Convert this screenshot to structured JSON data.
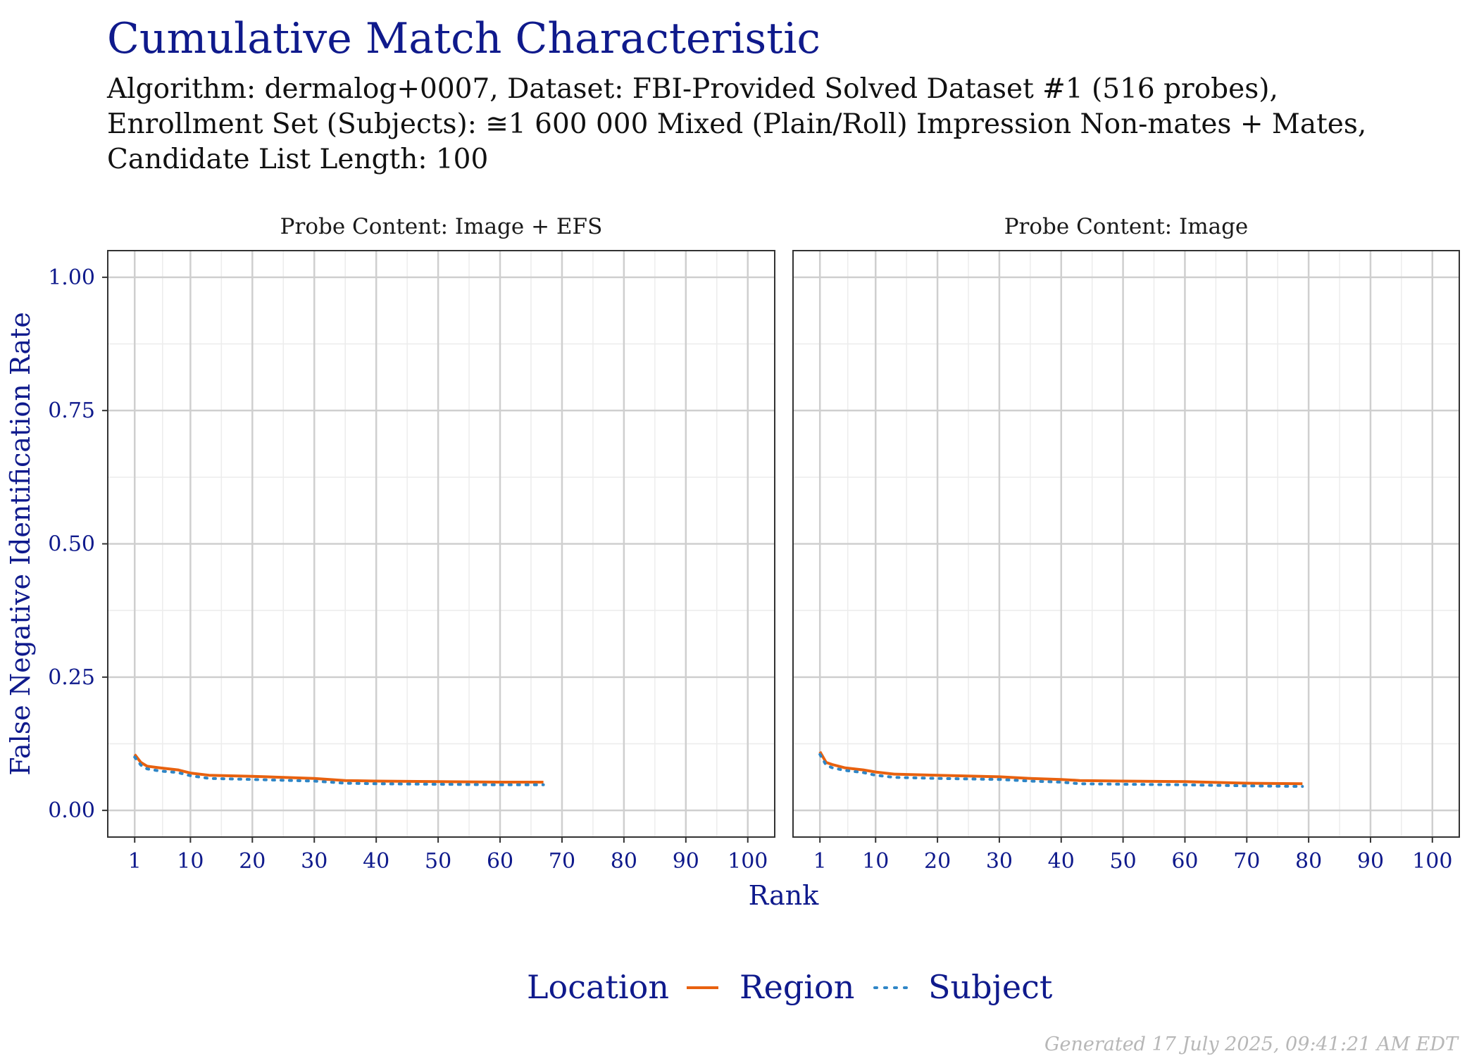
{
  "title": "Cumulative Match Characteristic",
  "subtitle_lines": [
    "Algorithm: dermalog+0007, Dataset: FBI-Provided Solved Dataset #1 (516 probes),",
    "Enrollment Set (Subjects): ≅1 600 000 Mixed (Plain/Roll) Impression Non-mates + Mates,",
    "Candidate List Length: 100"
  ],
  "generated": "Generated 17 July 2025, 09:41:21 AM EDT",
  "colors": {
    "title": "#0f1a8c",
    "region": "#e8610f",
    "subject": "#2f86c6",
    "grid_major": "#cfcfcf",
    "grid_minor": "#ececec",
    "panel_border": "#333333"
  },
  "chart_data": {
    "type": "line",
    "xlabel": "Rank",
    "ylabel": "False Negative Identification Rate",
    "xlim": [
      1,
      100
    ],
    "ylim": [
      0,
      1
    ],
    "x_ticks": [
      1,
      10,
      20,
      30,
      40,
      50,
      60,
      70,
      80,
      90,
      100
    ],
    "x_tick_labels": [
      "1",
      "10",
      "20",
      "30",
      "40",
      "50",
      "60",
      "70",
      "80",
      "90",
      "100"
    ],
    "y_ticks": [
      0,
      0.25,
      0.5,
      0.75,
      1
    ],
    "y_tick_labels": [
      "0.00",
      "0.25",
      "0.50",
      "0.75",
      "1.00"
    ],
    "legend": {
      "title": "Location",
      "position": "bottom",
      "entries": [
        "Region",
        "Subject"
      ]
    },
    "grid": true,
    "panels": [
      {
        "strip": "Probe Content: Image + EFS",
        "series": [
          {
            "name": "Region",
            "style": "solid",
            "x": [
              1,
              2,
              3,
              5,
              8,
              10,
              13,
              20,
              30,
              35,
              40,
              50,
              60,
              67
            ],
            "y": [
              0.105,
              0.09,
              0.083,
              0.08,
              0.076,
              0.07,
              0.066,
              0.064,
              0.06,
              0.056,
              0.055,
              0.054,
              0.053,
              0.053
            ]
          },
          {
            "name": "Subject",
            "style": "dotted",
            "x": [
              1,
              2,
              3,
              5,
              8,
              10,
              13,
              20,
              30,
              35,
              40,
              50,
              60,
              67
            ],
            "y": [
              0.1,
              0.085,
              0.078,
              0.074,
              0.071,
              0.065,
              0.06,
              0.058,
              0.055,
              0.051,
              0.05,
              0.049,
              0.048,
              0.048
            ]
          }
        ]
      },
      {
        "strip": "Probe Content: Image",
        "series": [
          {
            "name": "Region",
            "style": "solid",
            "x": [
              1,
              2,
              3,
              5,
              8,
              10,
              13,
              20,
              30,
              35,
              40,
              43,
              50,
              60,
              70,
              79
            ],
            "y": [
              0.11,
              0.09,
              0.086,
              0.08,
              0.076,
              0.072,
              0.068,
              0.066,
              0.063,
              0.06,
              0.058,
              0.056,
              0.055,
              0.054,
              0.051,
              0.05
            ]
          },
          {
            "name": "Subject",
            "style": "dotted",
            "x": [
              1,
              2,
              3,
              5,
              8,
              10,
              13,
              20,
              30,
              35,
              40,
              43,
              50,
              60,
              70,
              79
            ],
            "y": [
              0.105,
              0.085,
              0.08,
              0.075,
              0.071,
              0.066,
              0.062,
              0.06,
              0.058,
              0.055,
              0.053,
              0.05,
              0.049,
              0.048,
              0.046,
              0.045
            ]
          }
        ]
      }
    ]
  }
}
